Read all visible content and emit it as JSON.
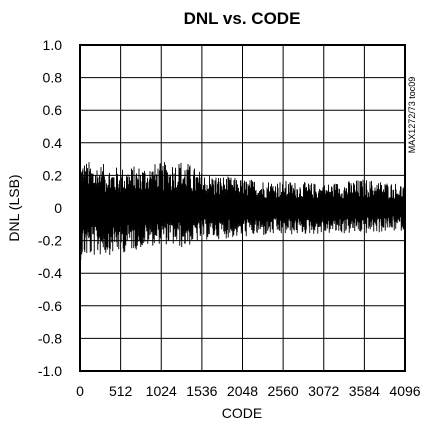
{
  "chart_data": {
    "type": "line",
    "title": "DNL vs. CODE",
    "xlabel": "CODE",
    "ylabel": "DNL (LSB)",
    "xlim": [
      0,
      4096
    ],
    "ylim": [
      -1.0,
      1.0
    ],
    "x_ticks": [
      0,
      512,
      1024,
      1536,
      2048,
      2560,
      3072,
      3584,
      4096
    ],
    "x_tick_labels": [
      "0",
      "512",
      "1024",
      "1536",
      "2048",
      "2560",
      "3072",
      "3584",
      "4096"
    ],
    "y_ticks": [
      1.0,
      0.8,
      0.6,
      0.4,
      0.2,
      0,
      -0.2,
      -0.4,
      -0.6,
      -0.8,
      -1.0
    ],
    "y_tick_labels": [
      "1.0",
      "0.8",
      "0.6",
      "0.4",
      "0.2",
      "0",
      "-0.2",
      "-0.4",
      "-0.6",
      "-0.8",
      "-1.0"
    ],
    "grid": true,
    "part_code": "MAX1272/73 toc09",
    "envelope": {
      "x": [
        0,
        200,
        512,
        1024,
        1300,
        1536,
        2048,
        2560,
        3072,
        3584,
        4096
      ],
      "upper": [
        0.3,
        0.28,
        0.25,
        0.28,
        0.3,
        0.22,
        0.18,
        0.17,
        0.15,
        0.18,
        0.15
      ],
      "lower": [
        -0.32,
        -0.3,
        -0.28,
        -0.22,
        -0.25,
        -0.2,
        -0.18,
        -0.17,
        -0.16,
        -0.16,
        -0.14
      ]
    }
  }
}
